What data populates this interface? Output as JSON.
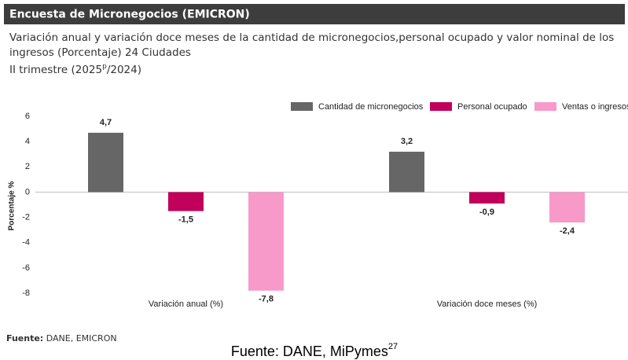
{
  "header": "Encuesta de Micronegocios (EMICRON)",
  "chart_data": {
    "type": "bar",
    "title": [
      "Variación anual y variación doce meses de la cantidad de micronegocios,personal ocupado y valor nominal de los",
      "ingresos (Porcentaje) 24 Ciudades"
    ],
    "subtitle": [
      "II trimestre (2025",
      "p",
      "/2024)"
    ],
    "y_label": "Porcentaje %",
    "categories": [
      "Variación anual (%)",
      "Variación doce meses (%)"
    ],
    "series": [
      {
        "name": "Cantidad de micronegocios",
        "color": "#666666",
        "values": [
          4.7,
          3.2
        ],
        "value_labels": [
          "4,7",
          "3,2"
        ]
      },
      {
        "name": "Personal ocupado",
        "color": "#c0005a",
        "values": [
          -1.5,
          -0.9
        ],
        "value_labels": [
          "-1,5",
          "-0,9"
        ]
      },
      {
        "name": "Ventas o ingresos",
        "color": "#f79ac9",
        "values": [
          -7.8,
          -2.4
        ],
        "value_labels": [
          "-7,8",
          "-2,4"
        ]
      }
    ],
    "ylim": [
      -8,
      6
    ],
    "yticks": [
      -8,
      -6,
      -4,
      -2,
      0,
      2,
      4,
      6
    ],
    "grid": false,
    "legend": "top-right",
    "source": {
      "label": "Fuente:",
      "text": "DANE, EMICRON"
    }
  },
  "caption": {
    "text": "Fuente: DANE, MiPymes",
    "sup": "27"
  }
}
